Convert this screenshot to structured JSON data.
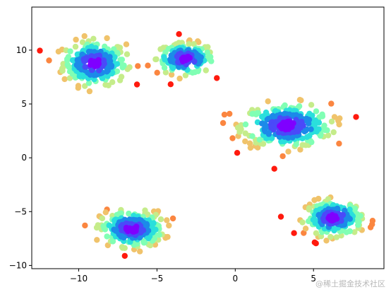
{
  "chart_data": {
    "type": "scatter",
    "title": "",
    "xlabel": "",
    "ylabel": "",
    "xlim": [
      -13,
      9.5
    ],
    "ylim": [
      -10.3,
      14
    ],
    "xticks": [
      -10,
      -5,
      0,
      5
    ],
    "yticks": [
      -10,
      -5,
      0,
      5,
      10
    ],
    "grid": false,
    "legend": "none",
    "colormap": "rainbow",
    "clusters": [
      {
        "center": [
          -9.0,
          8.8
        ],
        "sx": 1.0,
        "sy": 1.0,
        "n": 260
      },
      {
        "center": [
          -3.2,
          9.2
        ],
        "sx": 0.9,
        "sy": 0.7,
        "n": 180
      },
      {
        "center": [
          3.3,
          3.0
        ],
        "sx": 1.4,
        "sy": 1.0,
        "n": 320
      },
      {
        "center": [
          -6.6,
          -6.6
        ],
        "sx": 1.0,
        "sy": 0.8,
        "n": 260
      },
      {
        "center": [
          6.3,
          -5.6
        ],
        "sx": 0.9,
        "sy": 0.8,
        "n": 200
      }
    ],
    "density_colors": [
      "#7f00ff",
      "#4a4af9",
      "#1c8ae9",
      "#2adfdc",
      "#80ffb4",
      "#c5ec8a",
      "#f0c36b",
      "#fb8640",
      "#ff1a0e"
    ]
  },
  "watermark": "@稀土掘金技术社区"
}
